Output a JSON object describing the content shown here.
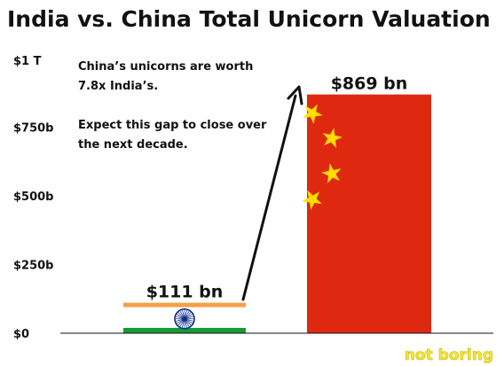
{
  "chart_data": {
    "type": "bar",
    "title": "India vs. China Total Unicorn Valuation",
    "categories": [
      "India",
      "China"
    ],
    "values": [
      111,
      869
    ],
    "data_labels": [
      "$111 bn",
      "$869 bn"
    ],
    "unit": "bn USD",
    "ylim": [
      0,
      1000
    ],
    "yticks": [
      {
        "value": 0,
        "label": "$0"
      },
      {
        "value": 250,
        "label": "$250b"
      },
      {
        "value": 500,
        "label": "$500b"
      },
      {
        "value": 750,
        "label": "$750b"
      },
      {
        "value": 1000,
        "label": "$1 T"
      }
    ],
    "grid": false,
    "legend": "none",
    "annotation": {
      "lines": [
        "China’s unicorns are worth",
        "7.8x India’s.",
        "",
        "Expect this gap to close over",
        "the next decade."
      ]
    },
    "bar_styles": {
      "India": "flag-of-india",
      "China": "flag-of-china"
    },
    "colors": {
      "india_saffron": "#f5a04a",
      "india_green": "#169b35",
      "india_chakra": "#0a2a8a",
      "china_red": "#de2910",
      "china_star": "#ffde00",
      "axis": "#111111"
    }
  },
  "watermark": "not boring"
}
